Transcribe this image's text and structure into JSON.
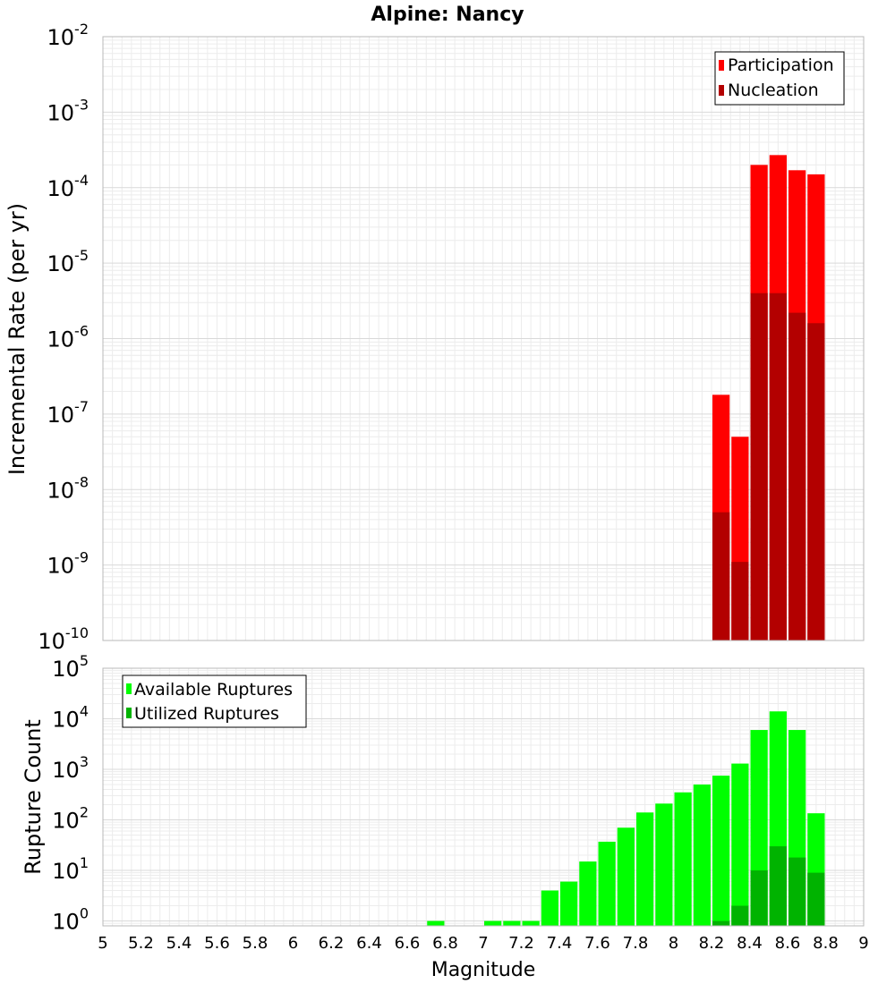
{
  "chart_data": [
    {
      "type": "bar",
      "title": "Alpine: Nancy",
      "xlabel": "",
      "ylabel": "Incremental Rate (per yr)",
      "yscale": "log",
      "xlim": [
        5,
        9
      ],
      "ylim": [
        1e-10,
        0.01
      ],
      "y_tick_exponents": [
        -10,
        -9,
        -8,
        -7,
        -6,
        -5,
        -4,
        -3,
        -2
      ],
      "bar_width": 0.1,
      "legend_position": "top-right",
      "series": [
        {
          "name": "Participation",
          "color": "#ff0000",
          "x": [
            8.25,
            8.35,
            8.45,
            8.55,
            8.65,
            8.75
          ],
          "values": [
            1.8e-07,
            5e-08,
            0.0002,
            0.00027,
            0.00017,
            0.00015
          ]
        },
        {
          "name": "Nucleation",
          "color": "#b30000",
          "x": [
            8.25,
            8.35,
            8.45,
            8.55,
            8.65,
            8.75
          ],
          "values": [
            5e-09,
            1.1e-09,
            4e-06,
            4e-06,
            2.2e-06,
            1.6e-06
          ]
        }
      ]
    },
    {
      "type": "bar",
      "title": "",
      "xlabel": "Magnitude",
      "ylabel": "Rupture Count",
      "yscale": "log",
      "xlim": [
        5,
        9
      ],
      "ylim": [
        0.8,
        100000
      ],
      "y_tick_exponents": [
        0,
        1,
        2,
        3,
        4,
        5
      ],
      "x_ticks": [
        "5",
        "5.2",
        "5.4",
        "5.6",
        "5.8",
        "6",
        "6.2",
        "6.4",
        "6.6",
        "6.8",
        "7",
        "7.2",
        "7.4",
        "7.6",
        "7.8",
        "8",
        "8.2",
        "8.4",
        "8.6",
        "8.8",
        "9"
      ],
      "bar_width": 0.1,
      "legend_position": "top-left",
      "series": [
        {
          "name": "Available Ruptures",
          "color": "#00ff00",
          "x": [
            6.75,
            7.05,
            7.15,
            7.25,
            7.35,
            7.45,
            7.55,
            7.65,
            7.75,
            7.85,
            7.95,
            8.05,
            8.15,
            8.25,
            8.35,
            8.45,
            8.55,
            8.65,
            8.75
          ],
          "values": [
            1,
            1,
            1,
            1,
            4,
            6,
            15,
            37,
            70,
            140,
            210,
            350,
            500,
            750,
            1300,
            6000,
            14000,
            6000,
            135
          ]
        },
        {
          "name": "Utilized Ruptures",
          "color": "#00b300",
          "x": [
            8.25,
            8.35,
            8.45,
            8.55,
            8.65,
            8.75
          ],
          "values": [
            1,
            2,
            10,
            30,
            18,
            9
          ]
        }
      ]
    }
  ]
}
